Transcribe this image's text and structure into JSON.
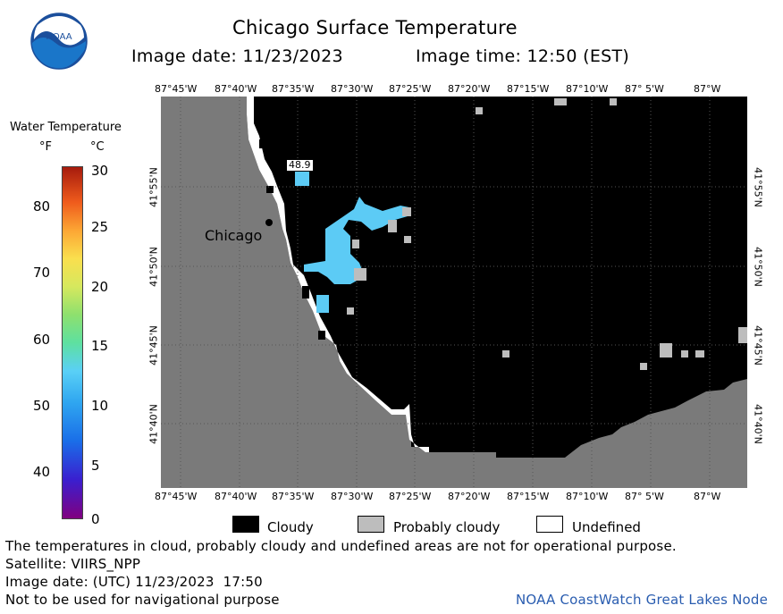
{
  "header": {
    "title": "Chicago Surface Temperature",
    "image_date": "Image date: 11/23/2023",
    "image_time": "Image time: 12:50 (EST)"
  },
  "logo": {
    "name": "noaa-logo",
    "text": "NOAA"
  },
  "colorbar": {
    "title": "Water Temperature",
    "unit_f": "°F",
    "unit_c": "°C",
    "f_ticks": [
      "80",
      "70",
      "60",
      "50",
      "40"
    ],
    "c_ticks": [
      "30",
      "25",
      "20",
      "15",
      "10",
      "5",
      "0"
    ]
  },
  "map": {
    "lon_labels": [
      "87°45'W",
      "87°40'W",
      "87°35'W",
      "87°30'W",
      "87°25'W",
      "87°20'W",
      "87°15'W",
      "87°10'W",
      "87° 5'W",
      "87°W"
    ],
    "lat_labels": [
      "41°55'N",
      "41°50'N",
      "41°45'N",
      "41°40'N"
    ],
    "city_label": "Chicago",
    "buoy_value": "48.9"
  },
  "legend": {
    "cloudy": "Cloudy",
    "probably_cloudy": "Probably cloudy",
    "undefined": "Undefined"
  },
  "footer": {
    "disclaimer": "The temperatures in cloud, probably cloudy and undefined areas are not for operational purpose.",
    "satellite": "Satellite: VIIRS_NPP",
    "utc_date": "Image date: (UTC) 11/23/2023  17:50",
    "nav_warning": "Not to be used for navigational purpose",
    "credit": "NOAA CoastWatch Great Lakes Node"
  },
  "colors": {
    "land": "#7a7a7a",
    "cloudy": "#000000",
    "probably_cloudy": "#bdbdbd",
    "undefined": "#ffffff",
    "water": "#5ccbf5",
    "credit": "#2a5db0"
  }
}
